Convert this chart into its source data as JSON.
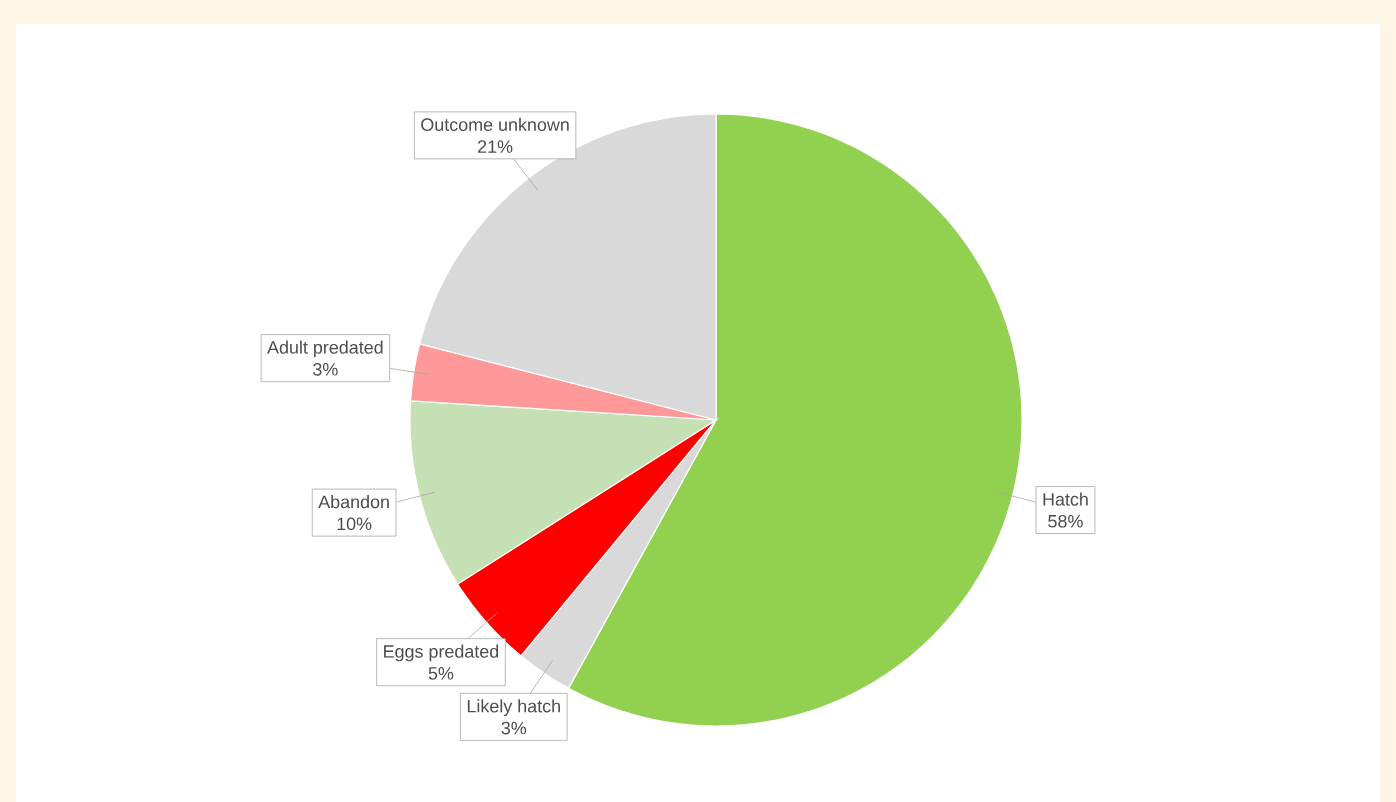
{
  "chart_data": {
    "type": "pie",
    "categories": [
      "Hatch",
      "Likely hatch",
      "Eggs predated",
      "Abandon",
      "Adult predated",
      "Outcome unknown"
    ],
    "values": [
      58,
      3,
      5,
      10,
      3,
      21
    ],
    "value_labels": [
      "58%",
      "3%",
      "5%",
      "10%",
      "3%",
      "21%"
    ],
    "colors": [
      "#92d050",
      "#d9d9d9",
      "#ff0000",
      "#c5e0b4",
      "#ff9999",
      "#d9d9d9"
    ]
  }
}
